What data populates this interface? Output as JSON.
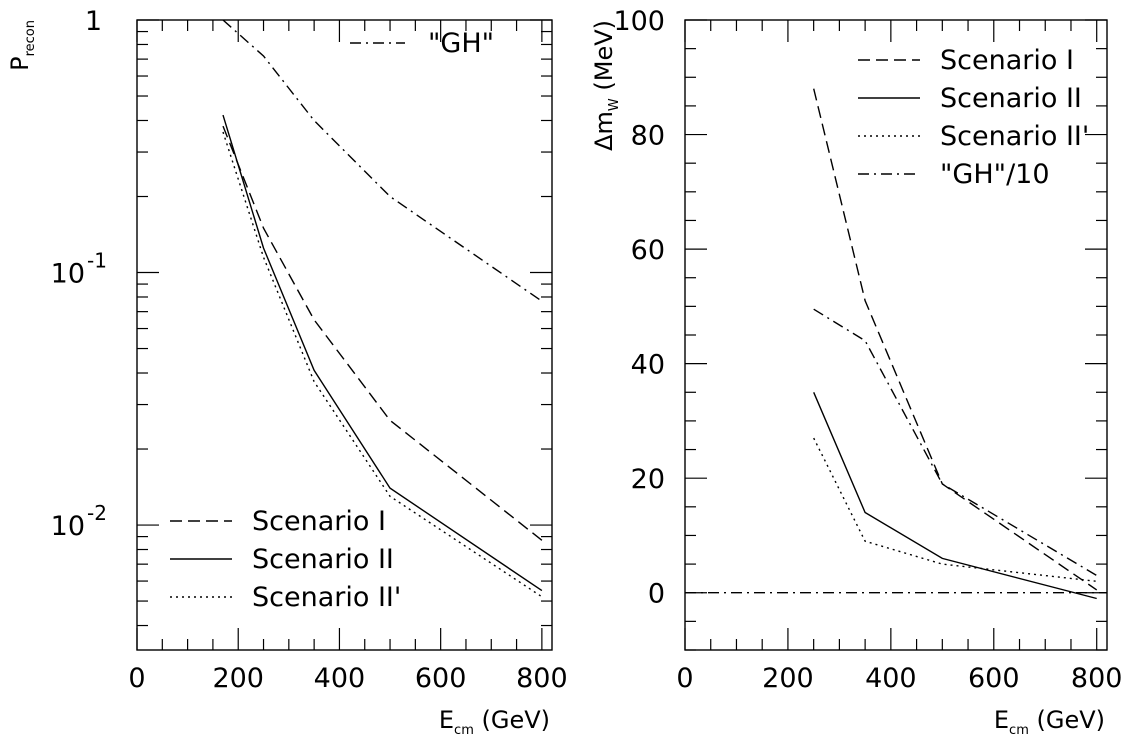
{
  "chart_data": [
    {
      "type": "line",
      "title": "",
      "xlabel": {
        "base": "E",
        "sub": "cm",
        "rest": " (GeV)"
      },
      "ylabel": {
        "base": "P",
        "sub": "recon"
      },
      "yscale": "log",
      "xlim": [
        0,
        820
      ],
      "ylim": [
        0.0032,
        1.0
      ],
      "xticks": [
        "0",
        "200",
        "400",
        "600",
        "800"
      ],
      "yticks": [
        {
          "value": 1,
          "label": "1"
        },
        {
          "value": 0.1,
          "label": "10",
          "exp": "-1"
        },
        {
          "value": 0.01,
          "label": "10",
          "exp": "-2"
        }
      ],
      "series": [
        {
          "name": "\"GH\"",
          "style": "dashdot",
          "x": [
            170,
            250,
            350,
            500,
            800
          ],
          "y": [
            1.0,
            0.72,
            0.4,
            0.2,
            0.077
          ]
        },
        {
          "name": "Scenario I",
          "style": "dashed",
          "x": [
            170,
            250,
            350,
            500,
            800
          ],
          "y": [
            0.38,
            0.15,
            0.065,
            0.026,
            0.0087
          ]
        },
        {
          "name": "Scenario II",
          "style": "solid",
          "x": [
            170,
            250,
            350,
            500,
            800
          ],
          "y": [
            0.42,
            0.125,
            0.041,
            0.014,
            0.0055
          ]
        },
        {
          "name": "Scenario II'",
          "style": "dotted",
          "x": [
            170,
            250,
            350,
            500,
            800
          ],
          "y": [
            0.36,
            0.115,
            0.037,
            0.013,
            0.0052
          ]
        }
      ],
      "legend_groups": [
        {
          "position": "top-right",
          "entries": [
            "\"GH\""
          ]
        },
        {
          "position": "bottom-left",
          "entries": [
            "Scenario I",
            "Scenario II",
            "Scenario II'"
          ]
        }
      ],
      "grid": false
    },
    {
      "type": "line",
      "title": "",
      "xlabel": {
        "base": "E",
        "sub": "cm",
        "rest": " (GeV)"
      },
      "ylabel": {
        "base": "Δm",
        "sub": "W",
        "rest": " (MeV)"
      },
      "yscale": "linear",
      "xlim": [
        0,
        820
      ],
      "ylim": [
        -10,
        100
      ],
      "xticks": [
        "0",
        "200",
        "400",
        "600",
        "800"
      ],
      "yticks": [
        "0",
        "20",
        "40",
        "60",
        "80",
        "100"
      ],
      "series": [
        {
          "name": "Scenario I",
          "style": "dashed",
          "x": [
            250,
            350,
            500,
            800
          ],
          "y": [
            88,
            51,
            19,
            0.5
          ]
        },
        {
          "name": "Scenario II",
          "style": "solid",
          "x": [
            250,
            350,
            500,
            800
          ],
          "y": [
            35,
            14,
            6,
            -1
          ]
        },
        {
          "name": "Scenario II'",
          "style": "dotted",
          "x": [
            250,
            350,
            500,
            800
          ],
          "y": [
            27,
            9,
            5,
            2
          ]
        },
        {
          "name": "\"GH\"/10",
          "style": "dashdot",
          "x": [
            250,
            350,
            500,
            800
          ],
          "y": [
            49.5,
            44,
            19,
            3
          ]
        },
        {
          "name": "",
          "style": "dashdot",
          "x": [
            0,
            820
          ],
          "y": [
            0,
            0
          ]
        }
      ],
      "legend_groups": [
        {
          "position": "top-right",
          "entries": [
            "Scenario I",
            "Scenario II",
            "Scenario II'",
            "\"GH\"/10"
          ]
        }
      ],
      "grid": false
    }
  ]
}
